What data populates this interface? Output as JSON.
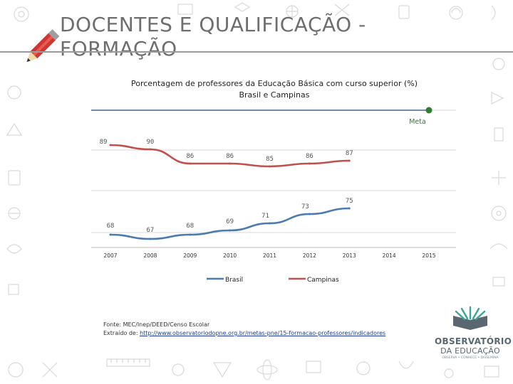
{
  "slide": {
    "title": "DOCENTES E QUALIFICAÇÃO - FORMAÇÃO"
  },
  "chart_data": {
    "type": "line",
    "title": "Porcentagem de professores da Educação Básica com curso superior (%)",
    "subtitle": "Brasil e Campinas",
    "categories": [
      "2007",
      "2008",
      "2009",
      "2010",
      "2011",
      "2012",
      "2013",
      "2014",
      "2015"
    ],
    "series": [
      {
        "name": "Brasil",
        "color": "#4a7ab0",
        "values": [
          68,
          67,
          68,
          69,
          71,
          73,
          75,
          null,
          null
        ]
      },
      {
        "name": "Campinas",
        "color": "#c0504d",
        "values": [
          89,
          90,
          86,
          86,
          85,
          86,
          87,
          null,
          null
        ]
      }
    ],
    "target": {
      "label": "Meta",
      "x": "2015",
      "value": 100,
      "color": "#2e7d32"
    },
    "legend": "bottom",
    "grid": true
  },
  "footer": {
    "source_label": "Fonte: MEC/Inep/DEED/Censo Escolar",
    "extracted_prefix": "Extraído de: ",
    "extracted_link": "http://www.observatoriodopne.org.br/metas-pne/15-formacao-professores/indicadores"
  },
  "logo": {
    "line1": "OBSERVATÓRIO",
    "line2": "DA EDUCAÇÃO",
    "tagline": "OBSERVA • CONHECE • DISSEMINA",
    "icon": "open-book-icon"
  }
}
